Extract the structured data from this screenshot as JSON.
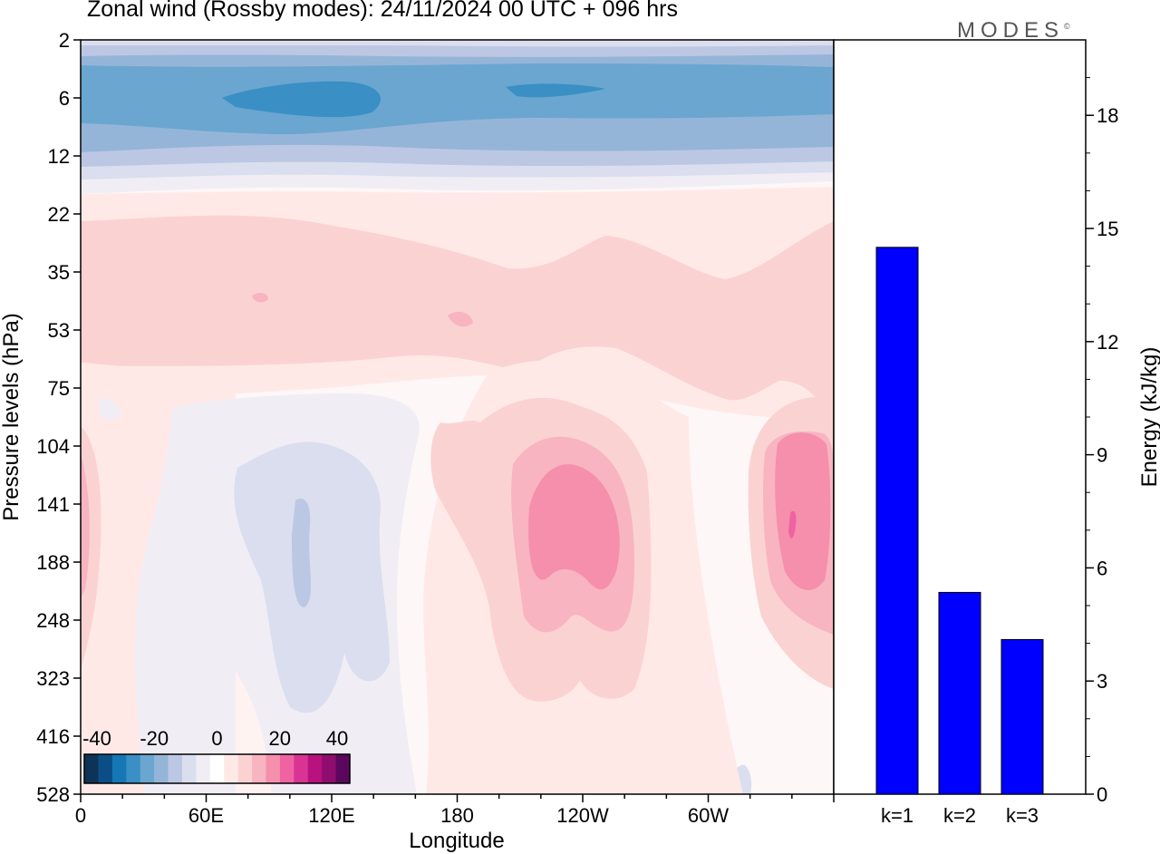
{
  "title": "Zonal wind (Rossby modes):  24/11/2024  00 UTC  + 096 hrs",
  "logo": "MODES",
  "logo_mark": "©",
  "chart_data": [
    {
      "type": "heatmap",
      "panel": "contour",
      "xlabel": "Longitude",
      "ylabel": "Pressure levels (hPa)",
      "x_ticks": [
        "0",
        "60E",
        "120E",
        "180",
        "120W",
        "60W"
      ],
      "y_ticks": [
        "2",
        "6",
        "12",
        "22",
        "35",
        "53",
        "75",
        "104",
        "141",
        "188",
        "248",
        "323",
        "416",
        "528"
      ],
      "colorbar": {
        "tick_labels": [
          "-40",
          "-20",
          "0",
          "20",
          "40"
        ],
        "levels": [
          -50,
          -45,
          -40,
          -35,
          -30,
          -25,
          -20,
          -15,
          -10,
          -5,
          0,
          5,
          10,
          15,
          20,
          25,
          30,
          35,
          40,
          45,
          50
        ],
        "colors": [
          "#0d3357",
          "#0b4e85",
          "#1577b5",
          "#3a8fc4",
          "#6aa6d0",
          "#95b5d8",
          "#bcc8e3",
          "#dadeee",
          "#f0edf5",
          "#ffffff",
          "#ffe9e7",
          "#fbd2d2",
          "#f8b4c0",
          "#f58fab",
          "#ef63a2",
          "#d93493",
          "#b8127e",
          "#8e0d6f",
          "#5b075e"
        ]
      }
    },
    {
      "type": "bar",
      "panel": "energy",
      "categories": [
        "k=1",
        "k=2",
        "k=3"
      ],
      "values": [
        14.5,
        5.35,
        4.1
      ],
      "ylabel": "Energy (kJ/kg)",
      "ylim": [
        0,
        20
      ],
      "y_ticks": [
        0,
        3,
        6,
        9,
        12,
        15,
        18
      ],
      "bar_color": "#0000ff"
    }
  ]
}
